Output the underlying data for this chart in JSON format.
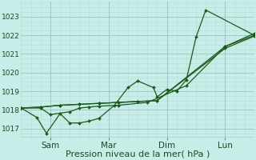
{
  "xlabel": "Pression niveau de la mer( hPa )",
  "background_color": "#c8ede8",
  "grid_major_color": "#a0ccc8",
  "grid_minor_color": "#b8ddd8",
  "line_color": "#1a5c1a",
  "ylim": [
    1016.5,
    1023.8
  ],
  "xlim": [
    0,
    12.0
  ],
  "xtick_major": [
    1.5,
    4.5,
    7.5,
    10.5
  ],
  "xtick_labels": [
    "Sam",
    "Mar",
    "Dim",
    "Lun"
  ],
  "xtick_minor_step": 0.5,
  "ytick_major": [
    1017,
    1018,
    1019,
    1020,
    1021,
    1022,
    1023
  ],
  "ytick_minor_step": 0.25,
  "vlines": [
    1.5,
    4.5,
    7.5,
    10.5
  ],
  "series_x": [
    [
      0.0,
      1.0,
      1.5,
      2.5,
      3.0,
      3.5,
      4.0,
      5.0,
      6.5,
      8.5,
      10.5,
      12.0
    ],
    [
      0.0,
      0.8,
      1.3,
      2.0,
      2.5,
      3.0,
      3.5,
      4.0,
      4.8,
      5.5,
      6.0,
      6.8,
      7.0,
      7.5,
      8.0,
      8.5,
      9.0,
      9.5,
      12.0
    ],
    [
      0.0,
      1.0,
      2.0,
      3.0,
      4.0,
      5.0,
      6.0,
      7.0,
      10.5,
      12.0
    ],
    [
      0.0,
      1.0,
      2.0,
      3.0,
      4.0,
      5.0,
      6.0,
      7.0,
      10.5,
      12.0
    ]
  ],
  "series_y": [
    [
      1018.1,
      1018.1,
      1017.75,
      1017.9,
      1018.1,
      1018.15,
      1018.2,
      1018.25,
      1018.4,
      1019.3,
      1021.4,
      1022.0
    ],
    [
      1018.1,
      1017.6,
      1016.75,
      1017.8,
      1017.3,
      1017.3,
      1017.4,
      1017.55,
      1018.25,
      1019.2,
      1019.55,
      1019.2,
      1018.7,
      1019.1,
      1019.0,
      1019.6,
      1021.9,
      1023.35,
      1022.0
    ],
    [
      1018.1,
      1018.15,
      1018.25,
      1018.3,
      1018.35,
      1018.4,
      1018.45,
      1018.5,
      1021.4,
      1022.1
    ],
    [
      1018.1,
      1018.15,
      1018.25,
      1018.3,
      1018.35,
      1018.4,
      1018.45,
      1018.5,
      1021.3,
      1021.95
    ]
  ],
  "markers": [
    true,
    true,
    true,
    true
  ],
  "fontsize_xlabel": 8,
  "fontsize_ytick": 6.5,
  "fontsize_xtick": 7.5,
  "markersize": 2.0,
  "linewidth": 0.9
}
